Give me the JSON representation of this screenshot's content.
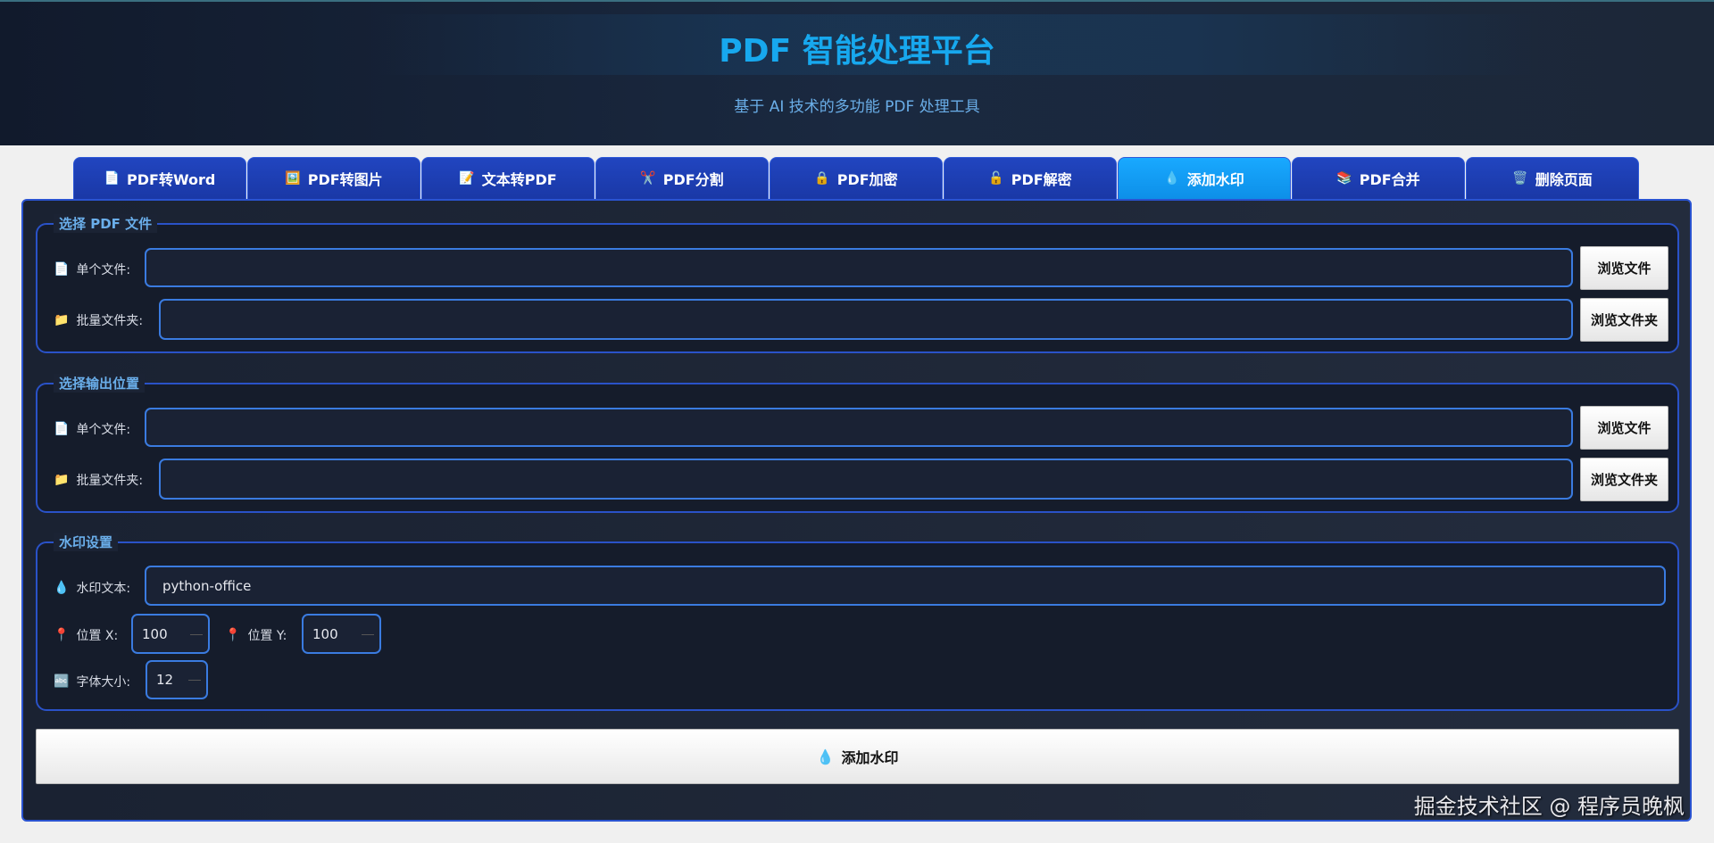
{
  "header": {
    "title": "PDF 智能处理平台",
    "subtitle": "基于 AI 技术的多功能 PDF 处理工具"
  },
  "tabs": [
    {
      "label": "PDF转Word",
      "icon": "📄"
    },
    {
      "label": "PDF转图片",
      "icon": "🖼️"
    },
    {
      "label": "文本转PDF",
      "icon": "📝"
    },
    {
      "label": "PDF分割",
      "icon": "✂️"
    },
    {
      "label": "PDF加密",
      "icon": "🔒"
    },
    {
      "label": "PDF解密",
      "icon": "🔓"
    },
    {
      "label": "添加水印",
      "icon": "💧",
      "active": true
    },
    {
      "label": "PDF合并",
      "icon": "📚"
    },
    {
      "label": "删除页面",
      "icon": "🗑️"
    }
  ],
  "input_group": {
    "legend": "选择 PDF 文件",
    "single_label": "单个文件:",
    "folder_label": "批量文件夹:",
    "single_value": "",
    "folder_value": "",
    "browse_file": "浏览文件",
    "browse_folder": "浏览文件夹"
  },
  "output_group": {
    "legend": "选择输出位置",
    "single_label": "单个文件:",
    "folder_label": "批量文件夹:",
    "single_value": "",
    "folder_value": "",
    "browse_file": "浏览文件",
    "browse_folder": "浏览文件夹"
  },
  "watermark": {
    "legend": "水印设置",
    "text_label": "水印文本:",
    "text_value": "python-office",
    "x_label": "位置 X:",
    "x_value": "100",
    "y_label": "位置 Y:",
    "y_value": "100",
    "size_label": "字体大小:",
    "size_value": "12"
  },
  "icons": {
    "file": "📄",
    "folder": "📁",
    "drop": "💧",
    "pin": "📍",
    "abc": "🔤"
  },
  "action_button": "添加水印",
  "watermark_overlay": "掘金技术社区 @ 程序员晚枫",
  "colors": {
    "accent": "#17a8ee",
    "tab": "#1f42b8",
    "tab_active": "#19a9ff",
    "input_border": "#3a7be0"
  }
}
